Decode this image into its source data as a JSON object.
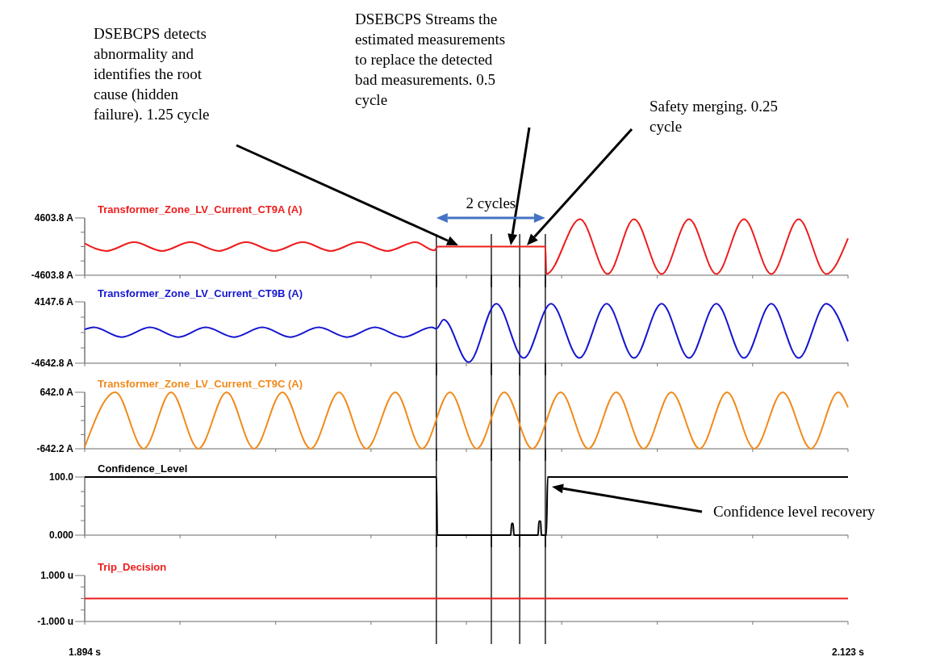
{
  "chart_data": [
    {
      "type": "line",
      "xlim": [
        1.894,
        2.123
      ],
      "ylim": [
        -4603.8,
        4603.8
      ],
      "yticks": [
        {
          "value": 4603.8,
          "label": "4603.8 A"
        },
        {
          "value": 2301.9,
          "label": null
        },
        {
          "value": 0,
          "label": null
        },
        {
          "value": -2301.9,
          "label": null
        },
        {
          "value": -4603.8,
          "label": "-4603.8 A"
        }
      ],
      "xticks": [
        {
          "value": 1.894,
          "label": null
        },
        {
          "value": 1.9226,
          "label": null
        },
        {
          "value": 1.9513,
          "label": null
        },
        {
          "value": 1.9799,
          "label": null
        },
        {
          "value": 2.0085,
          "label": null
        },
        {
          "value": 2.0371,
          "label": null
        },
        {
          "value": 2.0658,
          "label": null
        },
        {
          "value": 2.0944,
          "label": null
        },
        {
          "value": 2.123,
          "label": null
        }
      ],
      "tick_labels": "y",
      "legend": "top left",
      "series": [
        {
          "name": "Transformer_Zone_LV_Current_CT9A (A)",
          "color": "#ee1c1c",
          "x": [
            1.894,
            1.9005,
            1.9088,
            1.9172,
            1.9257,
            1.9342,
            1.9424,
            1.9509,
            1.9594,
            1.9678,
            1.9763,
            1.9848,
            1.9932,
            1.9988,
            2.0,
            2.0322,
            2.0325,
            2.0426,
            2.0509,
            2.0588,
            2.0671,
            2.0753,
            2.0835,
            2.0918,
            2.1,
            2.1082,
            2.1165,
            2.123
          ],
          "values": [
            500,
            -700,
            700,
            -700,
            700,
            -700,
            700,
            -700,
            700,
            -700,
            700,
            -700,
            700,
            -600,
            0,
            0,
            -4400,
            4400,
            -4400,
            4400,
            -4400,
            4400,
            -4400,
            4400,
            -4400,
            4400,
            -4400,
            1300
          ]
        }
      ],
      "ref_lines": [
        {
          "axis": "x",
          "value": 1.9995,
          "color": "#000000"
        },
        {
          "axis": "x",
          "value": 2.016,
          "color": "#000000"
        },
        {
          "axis": "x",
          "value": 2.0245,
          "color": "#000000"
        },
        {
          "axis": "x",
          "value": 2.0322,
          "color": "#000000"
        }
      ],
      "annotations": [
        "DSEBCPS detects abnormality and identifies the root cause (hidden failure). 1.25 cycle",
        "DSEBCPS Streams the estimated measurements to replace the detected bad measurements. 0.5 cycle",
        "Safety merging. 0.25 cycle",
        "2 cycles"
      ]
    },
    {
      "type": "line",
      "xlim": [
        1.894,
        2.123
      ],
      "ylim": [
        -4642.8,
        4147.6
      ],
      "yticks": [
        {
          "value": 4147.6,
          "label": "4147.6 A"
        },
        {
          "value": 1950.0,
          "label": null
        },
        {
          "value": -247.6,
          "label": null
        },
        {
          "value": -2445.2,
          "label": null
        },
        {
          "value": -4642.8,
          "label": "-4642.8 A"
        }
      ],
      "xticks": [
        {
          "value": 1.894,
          "label": null
        },
        {
          "value": 1.9226,
          "label": null
        },
        {
          "value": 1.9513,
          "label": null
        },
        {
          "value": 1.9799,
          "label": null
        },
        {
          "value": 2.0085,
          "label": null
        },
        {
          "value": 2.0371,
          "label": null
        },
        {
          "value": 2.0658,
          "label": null
        },
        {
          "value": 2.0944,
          "label": null
        },
        {
          "value": 2.123,
          "label": null
        }
      ],
      "tick_labels": "y",
      "legend": "top left",
      "series": [
        {
          "name": "Transformer_Zone_LV_Current_CT9B (A)",
          "color": "#1515d0",
          "x": [
            1.894,
            1.8967,
            1.9051,
            1.9136,
            1.9221,
            1.9303,
            1.9388,
            1.9473,
            1.9557,
            1.9642,
            1.9727,
            1.9811,
            1.9896,
            1.9981,
            1.9995,
            2.0017,
            2.0092,
            2.0175,
            2.0257,
            2.0339,
            2.0424,
            2.0506,
            2.0588,
            2.0671,
            2.0753,
            2.0835,
            2.0918,
            2.1,
            2.1082,
            2.1165,
            2.123
          ],
          "values": [
            200,
            500,
            -900,
            500,
            -900,
            500,
            -900,
            500,
            -900,
            500,
            -900,
            500,
            -900,
            500,
            300,
            1600,
            -4500,
            3900,
            -3900,
            3900,
            -3900,
            3900,
            -3900,
            3900,
            -3900,
            3900,
            -3900,
            3900,
            -3900,
            3900,
            -1500
          ]
        }
      ],
      "ref_lines": [
        {
          "axis": "x",
          "value": 1.9995,
          "color": "#000000"
        },
        {
          "axis": "x",
          "value": 2.016,
          "color": "#000000"
        },
        {
          "axis": "x",
          "value": 2.0245,
          "color": "#000000"
        },
        {
          "axis": "x",
          "value": 2.0322,
          "color": "#000000"
        }
      ]
    },
    {
      "type": "line",
      "xlim": [
        1.894,
        2.123
      ],
      "ylim": [
        -642.2,
        642.0
      ],
      "yticks": [
        {
          "value": 642.0,
          "label": "642.0 A"
        },
        {
          "value": 321.0,
          "label": null
        },
        {
          "value": -0.1,
          "label": null
        },
        {
          "value": -321.1,
          "label": null
        },
        {
          "value": -642.2,
          "label": "-642.2 A"
        }
      ],
      "xticks": [
        {
          "value": 1.894,
          "label": null
        },
        {
          "value": 1.9226,
          "label": null
        },
        {
          "value": 1.9513,
          "label": null
        },
        {
          "value": 1.9799,
          "label": null
        },
        {
          "value": 2.0085,
          "label": null
        },
        {
          "value": 2.0371,
          "label": null
        },
        {
          "value": 2.0658,
          "label": null
        },
        {
          "value": 2.0944,
          "label": null
        },
        {
          "value": 2.123,
          "label": null
        }
      ],
      "tick_labels": "y",
      "legend": "top left",
      "series": [
        {
          "name": "Transformer_Zone_LV_Current_CT9C (A)",
          "color": "#f08a1c",
          "x": [
            1.894,
            1.9032,
            1.9117,
            1.9199,
            1.9281,
            1.9366,
            1.9448,
            1.9533,
            1.9618,
            1.9703,
            1.9785,
            1.9872,
            1.9952,
            2.0036,
            2.0116,
            2.0199,
            2.0283,
            2.0368,
            2.0451,
            2.0535,
            2.0617,
            2.07,
            2.0785,
            2.0867,
            2.0949,
            2.1034,
            2.1119,
            2.1201,
            2.123
          ],
          "values": [
            -600,
            640,
            -640,
            640,
            -640,
            640,
            -640,
            640,
            -640,
            640,
            -640,
            640,
            -640,
            640,
            -640,
            640,
            -640,
            640,
            -640,
            640,
            -640,
            640,
            -640,
            640,
            -640,
            640,
            -640,
            640,
            300
          ]
        }
      ],
      "ref_lines": [
        {
          "axis": "x",
          "value": 1.9995,
          "color": "#000000"
        },
        {
          "axis": "x",
          "value": 2.016,
          "color": "#000000"
        },
        {
          "axis": "x",
          "value": 2.0245,
          "color": "#000000"
        },
        {
          "axis": "x",
          "value": 2.0322,
          "color": "#000000"
        }
      ]
    },
    {
      "type": "line",
      "xlim": [
        1.894,
        2.123
      ],
      "ylim": [
        0,
        100
      ],
      "yticks": [
        {
          "value": 100,
          "label": "100.0"
        },
        {
          "value": 75,
          "label": null
        },
        {
          "value": 50,
          "label": null
        },
        {
          "value": 25,
          "label": null
        },
        {
          "value": 0,
          "label": "0.000"
        }
      ],
      "xticks": [
        {
          "value": 1.894,
          "label": null
        },
        {
          "value": 1.9226,
          "label": null
        },
        {
          "value": 1.9513,
          "label": null
        },
        {
          "value": 1.9799,
          "label": null
        },
        {
          "value": 2.0085,
          "label": null
        },
        {
          "value": 2.0371,
          "label": null
        },
        {
          "value": 2.0658,
          "label": null
        },
        {
          "value": 2.0944,
          "label": null
        },
        {
          "value": 2.123,
          "label": null
        }
      ],
      "tick_labels": "y",
      "legend": "top left",
      "series": [
        {
          "name": "Confidence_Level",
          "color": "#000000",
          "x": [
            1.894,
            1.9995,
            1.9998,
            2.0218,
            2.0221,
            2.0225,
            2.0228,
            2.03,
            2.0303,
            2.0308,
            2.031,
            2.0325,
            2.0329,
            2.123
          ],
          "values": [
            100,
            100,
            0,
            0,
            20,
            20,
            0,
            0,
            24,
            24,
            0,
            0,
            100,
            100
          ]
        }
      ],
      "ref_lines": [
        {
          "axis": "x",
          "value": 1.9995,
          "color": "#000000"
        },
        {
          "axis": "x",
          "value": 2.016,
          "color": "#000000"
        },
        {
          "axis": "x",
          "value": 2.0245,
          "color": "#000000"
        },
        {
          "axis": "x",
          "value": 2.0322,
          "color": "#000000"
        }
      ],
      "annotations": [
        "Confidence level recovery"
      ]
    },
    {
      "type": "line",
      "xlim": [
        1.894,
        2.123
      ],
      "ylim": [
        -1,
        1
      ],
      "yticks": [
        {
          "value": 1,
          "label": "1.000 u"
        },
        {
          "value": 0.5,
          "label": null
        },
        {
          "value": 0,
          "label": null
        },
        {
          "value": -0.5,
          "label": null
        },
        {
          "value": -1,
          "label": "-1.000 u"
        }
      ],
      "xticks": [
        {
          "value": 1.894,
          "label": "1.894 s"
        },
        {
          "value": 1.9226,
          "label": null
        },
        {
          "value": 1.9513,
          "label": null
        },
        {
          "value": 1.9799,
          "label": null
        },
        {
          "value": 2.0085,
          "label": null
        },
        {
          "value": 2.0371,
          "label": null
        },
        {
          "value": 2.0658,
          "label": null
        },
        {
          "value": 2.0944,
          "label": null
        },
        {
          "value": 2.123,
          "label": "2.123 s"
        }
      ],
      "legend": "top left",
      "series": [
        {
          "name": "Trip_Decision",
          "color": "#ee1c1c",
          "x": [
            1.894,
            2.123
          ],
          "values": [
            0,
            0
          ]
        }
      ],
      "ref_lines": [
        {
          "axis": "x",
          "value": 1.9995,
          "color": "#000000"
        },
        {
          "axis": "x",
          "value": 2.016,
          "color": "#000000"
        },
        {
          "axis": "x",
          "value": 2.0245,
          "color": "#000000"
        },
        {
          "axis": "x",
          "value": 2.0322,
          "color": "#000000"
        }
      ]
    }
  ]
}
